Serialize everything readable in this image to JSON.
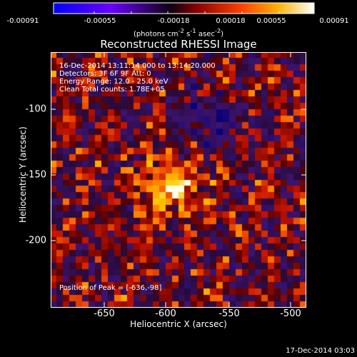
{
  "title": "Reconstructed RHESSI Image",
  "colorbar": {
    "ticks": [
      "-0.00091",
      "-0.00055",
      "-0.00018",
      "0.00018",
      "0.00055",
      "0.00091"
    ],
    "unit_main": "(photons cm",
    "unit_exp1": "-2",
    "unit_mid1": " s",
    "unit_exp2": "-1",
    "unit_mid2": " asec",
    "unit_exp3": "-2",
    "unit_end": ")",
    "colors": [
      "#0000ff",
      "#7a00ff",
      "#000000",
      "#b00000",
      "#ff7000",
      "#ffff00",
      "#ffffff"
    ]
  },
  "annotations": {
    "line1": "16-Dec-2014 13:11:14.000 to 13:14:20.000",
    "line2": "Detectors: 3F 6F 9F  Att: 0",
    "line3": "Energy Range: 12.0 - 25.0 keV",
    "line4": "Clean    Total counts: 1.78E+05",
    "peak": "Position of Peak = [-636,-98]"
  },
  "axes": {
    "xlabel": "Heliocentric X (arcsec)",
    "ylabel": "Heliocentric Y (arcsec)",
    "xticks": [
      "-650",
      "-600",
      "-550",
      "-500"
    ],
    "yticks": [
      "-100",
      "-150",
      "-200"
    ]
  },
  "footer": "17-Dec-2014 03:03"
}
